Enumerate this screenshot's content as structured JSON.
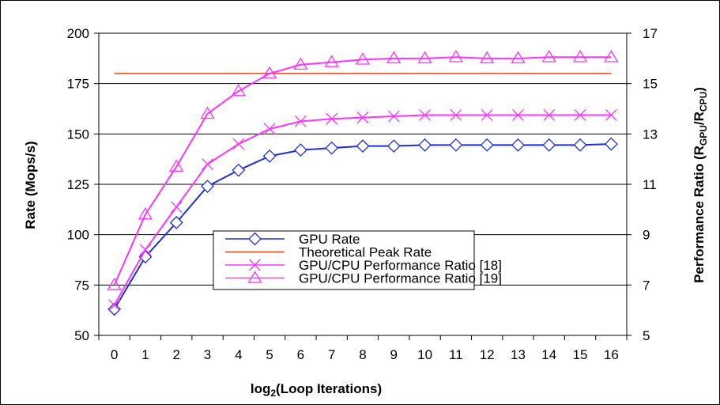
{
  "chart_data": {
    "type": "line",
    "xlabel_main": "log",
    "xlabel_sub": "2",
    "xlabel_rest": "(Loop Iterations)",
    "ylabel": "Rate (Mops/s)",
    "ylabel_right_main": "Performance Ratio (R",
    "ylabel_right_sub1": "GPU",
    "ylabel_right_mid": "/R",
    "ylabel_right_sub2": "CPU",
    "ylabel_right_end": ")",
    "x": [
      0,
      1,
      2,
      3,
      4,
      5,
      6,
      7,
      8,
      9,
      10,
      11,
      12,
      13,
      14,
      15,
      16
    ],
    "ylim": [
      50,
      200
    ],
    "yticks": [
      50,
      75,
      100,
      125,
      150,
      175,
      200
    ],
    "y2lim": [
      5,
      17
    ],
    "y2ticks": [
      5,
      7,
      9,
      11,
      13,
      15,
      17
    ],
    "grid": true,
    "legend_position": "center-right",
    "series": [
      {
        "name": "GPU Rate",
        "axis": "left",
        "color": "#1f2fd6",
        "marker": "diamond",
        "values": [
          63,
          89,
          106,
          124,
          132,
          139,
          142,
          143,
          144,
          144,
          144.5,
          144.5,
          144.5,
          144.5,
          144.5,
          144.5,
          145
        ]
      },
      {
        "name": "Theoretical Peak Rate",
        "axis": "left",
        "color": "#e8471c",
        "marker": "none",
        "values": [
          180,
          180,
          180,
          180,
          180,
          180,
          180,
          180,
          180,
          180,
          180,
          180,
          180,
          180,
          180,
          180,
          180
        ]
      },
      {
        "name": "GPU/CPU Performance Ratio [18]",
        "axis": "right",
        "color": "#ff33ff",
        "marker": "x",
        "values": [
          6.2,
          8.4,
          10.1,
          11.8,
          12.6,
          13.2,
          13.5,
          13.6,
          13.65,
          13.7,
          13.75,
          13.75,
          13.75,
          13.75,
          13.75,
          13.75,
          13.75
        ]
      },
      {
        "name": "GPU/CPU Performance Ratio [19]",
        "axis": "right",
        "color": "#ff33ff",
        "marker": "triangle",
        "values": [
          7.0,
          9.8,
          11.7,
          13.8,
          14.7,
          15.4,
          15.75,
          15.85,
          15.95,
          16.0,
          16.0,
          16.05,
          16.0,
          16.0,
          16.05,
          16.05,
          16.05
        ]
      }
    ]
  }
}
